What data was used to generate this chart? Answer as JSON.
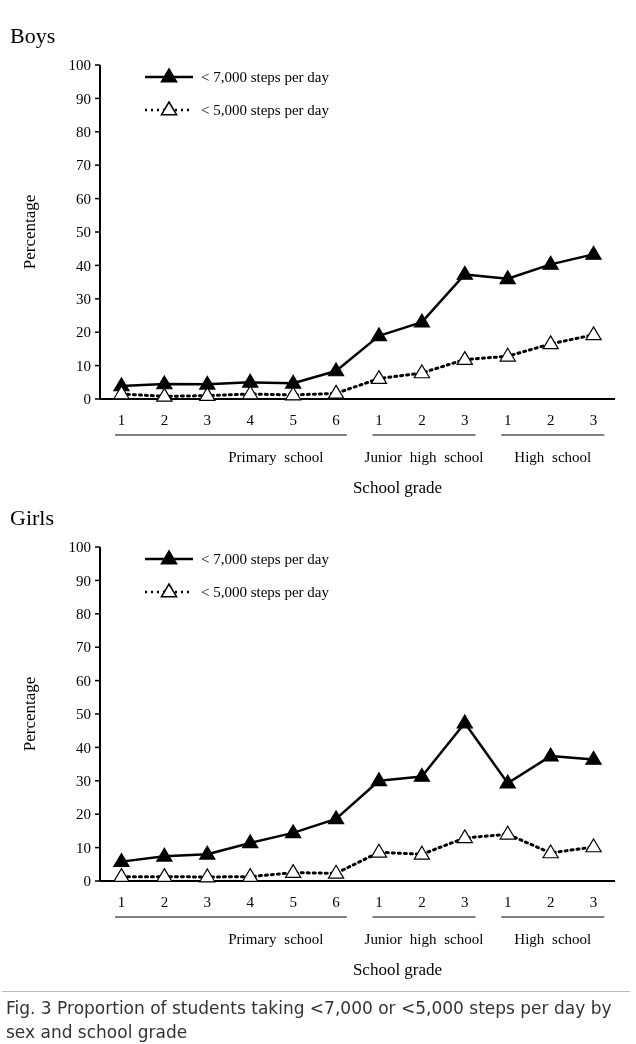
{
  "chart_data": [
    {
      "type": "line",
      "title": "Boys",
      "xlabel": "School grade",
      "ylabel": "Percentage",
      "categories": [
        "1",
        "2",
        "3",
        "4",
        "5",
        "6",
        "1",
        "2",
        "3",
        "1",
        "2",
        "3"
      ],
      "ylim": [
        0,
        100
      ],
      "yticks": [
        0,
        10,
        20,
        30,
        40,
        50,
        60,
        70,
        80,
        90,
        100
      ],
      "legend": "top left",
      "marker": "triangle",
      "grid": false,
      "series": [
        {
          "name": "< 7,000 steps per day",
          "color": "#000000",
          "line_style": "solid",
          "values": [
            3.9,
            4.5,
            4.4,
            5.0,
            4.7,
            8.4,
            18.9,
            23,
            37.3,
            36,
            40.3,
            43.3
          ]
        },
        {
          "name": "< 5,000 steps per day",
          "color": "#000000",
          "line_style": "dotted",
          "values": [
            1.5,
            0.8,
            1.0,
            1.5,
            1.2,
            1.7,
            6.1,
            7.8,
            11.8,
            12.8,
            16.5,
            19.2
          ]
        }
      ],
      "annotations": [
        "Primary school",
        "Junior high school",
        "High school"
      ]
    },
    {
      "type": "line",
      "title": "Girls",
      "xlabel": "School grade",
      "ylabel": "Percentage",
      "categories": [
        "1",
        "2",
        "3",
        "4",
        "5",
        "6",
        "1",
        "2",
        "3",
        "1",
        "2",
        "3"
      ],
      "ylim": [
        0,
        100
      ],
      "yticks": [
        0,
        10,
        20,
        30,
        40,
        50,
        60,
        70,
        80,
        90,
        100
      ],
      "legend": "top left",
      "marker": "triangle",
      "grid": false,
      "series": [
        {
          "name": "< 7,000 steps per day",
          "color": "#000000",
          "line_style": "solid",
          "values": [
            5.8,
            7.4,
            8.0,
            11.4,
            14.4,
            18.6,
            30,
            31.3,
            47.3,
            29.3,
            37.4,
            36.4
          ]
        },
        {
          "name": "< 5,000 steps per day",
          "color": "#000000",
          "line_style": "dotted",
          "values": [
            1.3,
            1.3,
            1.2,
            1.3,
            2.5,
            2.3,
            8.6,
            8.0,
            12.9,
            14.0,
            8.4,
            10.2
          ]
        }
      ],
      "annotations": [
        "Primary school",
        "Junior high school",
        "High school",
        "Fig. 3 Proportion of students taking <7,000 or <5,000 steps per day by sex and school grade"
      ]
    }
  ]
}
